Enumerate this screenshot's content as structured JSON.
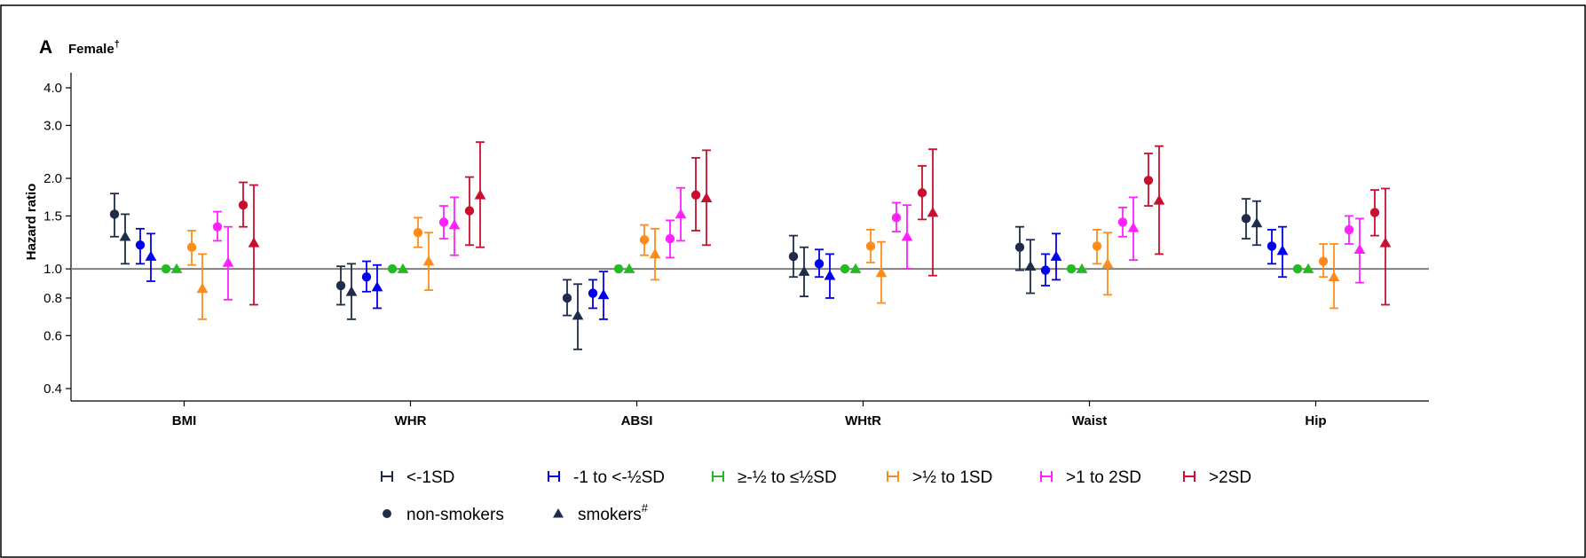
{
  "panel": {
    "letter": "A",
    "title": "Female",
    "title_mark": "†"
  },
  "chart_data": {
    "type": "scatter",
    "subtype": "forest-plot-with-error-bars",
    "title": "Female†",
    "ylabel": "Hazard ratio",
    "xlabel": "",
    "y_scale": "log",
    "ylim": [
      0.37,
      4.0
    ],
    "yticks": [
      0.4,
      0.6,
      0.8,
      1.0,
      1.5,
      2.0,
      3.0,
      4.0
    ],
    "ytick_labels": [
      "0.4",
      "0.6",
      "0.8",
      "1.0",
      "1.5",
      "2.0",
      "3.0",
      "4.0"
    ],
    "reference_line": 1.0,
    "grid": false,
    "legend_position": "bottom",
    "categories": [
      "BMI",
      "WHR",
      "ABSI",
      "WHtR",
      "Waist",
      "Hip"
    ],
    "sd_groups": [
      {
        "name": "<-1SD",
        "color": "#1f2d4a"
      },
      {
        "name": "-1 to <-½SD",
        "color": "#0000ee"
      },
      {
        "name": "≥-½ to ≤½SD",
        "color": "#22bb22"
      },
      {
        "name": ">½ to 1SD",
        "color": "#ff8c1a"
      },
      {
        "name": ">1 to 2SD",
        "color": "#ff22ff"
      },
      {
        "name": ">2SD",
        "color": "#c8102e"
      }
    ],
    "markers": [
      {
        "name": "non-smokers",
        "shape": "circle"
      },
      {
        "name": "smokers",
        "shape": "triangle",
        "mark": "#"
      }
    ],
    "series": [
      {
        "category": "BMI",
        "group": "<-1SD",
        "smoking": "non-smokers",
        "hr": 1.52,
        "lo": 1.28,
        "hi": 1.78
      },
      {
        "category": "BMI",
        "group": "<-1SD",
        "smoking": "smokers",
        "hr": 1.28,
        "lo": 1.04,
        "hi": 1.52
      },
      {
        "category": "BMI",
        "group": "-1 to <-½SD",
        "smoking": "non-smokers",
        "hr": 1.2,
        "lo": 1.04,
        "hi": 1.36
      },
      {
        "category": "BMI",
        "group": "-1 to <-½SD",
        "smoking": "smokers",
        "hr": 1.1,
        "lo": 0.91,
        "hi": 1.31
      },
      {
        "category": "BMI",
        "group": "≥-½ to ≤½SD",
        "smoking": "non-smokers",
        "hr": 1.0,
        "lo": 1.0,
        "hi": 1.0
      },
      {
        "category": "BMI",
        "group": "≥-½ to ≤½SD",
        "smoking": "smokers",
        "hr": 1.0,
        "lo": 1.0,
        "hi": 1.0
      },
      {
        "category": "BMI",
        "group": ">½ to 1SD",
        "smoking": "non-smokers",
        "hr": 1.18,
        "lo": 1.03,
        "hi": 1.34
      },
      {
        "category": "BMI",
        "group": ">½ to 1SD",
        "smoking": "smokers",
        "hr": 0.86,
        "lo": 0.68,
        "hi": 1.12
      },
      {
        "category": "BMI",
        "group": ">1 to 2SD",
        "smoking": "non-smokers",
        "hr": 1.38,
        "lo": 1.24,
        "hi": 1.55
      },
      {
        "category": "BMI",
        "group": ">1 to 2SD",
        "smoking": "smokers",
        "hr": 1.05,
        "lo": 0.79,
        "hi": 1.38
      },
      {
        "category": "BMI",
        "group": ">2SD",
        "smoking": "non-smokers",
        "hr": 1.63,
        "lo": 1.38,
        "hi": 1.94
      },
      {
        "category": "BMI",
        "group": ">2SD",
        "smoking": "smokers",
        "hr": 1.22,
        "lo": 0.76,
        "hi": 1.9
      },
      {
        "category": "WHR",
        "group": "<-1SD",
        "smoking": "non-smokers",
        "hr": 0.88,
        "lo": 0.76,
        "hi": 1.02
      },
      {
        "category": "WHR",
        "group": "<-1SD",
        "smoking": "smokers",
        "hr": 0.84,
        "lo": 0.68,
        "hi": 1.04
      },
      {
        "category": "WHR",
        "group": "-1 to <-½SD",
        "smoking": "non-smokers",
        "hr": 0.94,
        "lo": 0.84,
        "hi": 1.06
      },
      {
        "category": "WHR",
        "group": "-1 to <-½SD",
        "smoking": "smokers",
        "hr": 0.87,
        "lo": 0.74,
        "hi": 1.03
      },
      {
        "category": "WHR",
        "group": "≥-½ to ≤½SD",
        "smoking": "non-smokers",
        "hr": 1.0,
        "lo": 1.0,
        "hi": 1.0
      },
      {
        "category": "WHR",
        "group": "≥-½ to ≤½SD",
        "smoking": "smokers",
        "hr": 1.0,
        "lo": 1.0,
        "hi": 1.0
      },
      {
        "category": "WHR",
        "group": ">½ to 1SD",
        "smoking": "non-smokers",
        "hr": 1.32,
        "lo": 1.18,
        "hi": 1.48
      },
      {
        "category": "WHR",
        "group": ">½ to 1SD",
        "smoking": "smokers",
        "hr": 1.06,
        "lo": 0.85,
        "hi": 1.32
      },
      {
        "category": "WHR",
        "group": ">1 to 2SD",
        "smoking": "non-smokers",
        "hr": 1.43,
        "lo": 1.26,
        "hi": 1.62
      },
      {
        "category": "WHR",
        "group": ">1 to 2SD",
        "smoking": "smokers",
        "hr": 1.4,
        "lo": 1.11,
        "hi": 1.73
      },
      {
        "category": "WHR",
        "group": ">2SD",
        "smoking": "non-smokers",
        "hr": 1.56,
        "lo": 1.2,
        "hi": 2.02
      },
      {
        "category": "WHR",
        "group": ">2SD",
        "smoking": "smokers",
        "hr": 1.76,
        "lo": 1.18,
        "hi": 2.64
      },
      {
        "category": "ABSI",
        "group": "<-1SD",
        "smoking": "non-smokers",
        "hr": 0.8,
        "lo": 0.7,
        "hi": 0.92
      },
      {
        "category": "ABSI",
        "group": "<-1SD",
        "smoking": "smokers",
        "hr": 0.7,
        "lo": 0.54,
        "hi": 0.89
      },
      {
        "category": "ABSI",
        "group": "-1 to <-½SD",
        "smoking": "non-smokers",
        "hr": 0.83,
        "lo": 0.74,
        "hi": 0.92
      },
      {
        "category": "ABSI",
        "group": "-1 to <-½SD",
        "smoking": "smokers",
        "hr": 0.82,
        "lo": 0.68,
        "hi": 0.98
      },
      {
        "category": "ABSI",
        "group": "≥-½ to ≤½SD",
        "smoking": "non-smokers",
        "hr": 1.0,
        "lo": 1.0,
        "hi": 1.0
      },
      {
        "category": "ABSI",
        "group": "≥-½ to ≤½SD",
        "smoking": "smokers",
        "hr": 1.0,
        "lo": 1.0,
        "hi": 1.0
      },
      {
        "category": "ABSI",
        "group": ">½ to 1SD",
        "smoking": "non-smokers",
        "hr": 1.25,
        "lo": 1.11,
        "hi": 1.4
      },
      {
        "category": "ABSI",
        "group": ">½ to 1SD",
        "smoking": "smokers",
        "hr": 1.12,
        "lo": 0.92,
        "hi": 1.36
      },
      {
        "category": "ABSI",
        "group": ">1 to 2SD",
        "smoking": "non-smokers",
        "hr": 1.26,
        "lo": 1.09,
        "hi": 1.45
      },
      {
        "category": "ABSI",
        "group": ">1 to 2SD",
        "smoking": "smokers",
        "hr": 1.52,
        "lo": 1.24,
        "hi": 1.86
      },
      {
        "category": "ABSI",
        "group": ">2SD",
        "smoking": "non-smokers",
        "hr": 1.76,
        "lo": 1.34,
        "hi": 2.34
      },
      {
        "category": "ABSI",
        "group": ">2SD",
        "smoking": "smokers",
        "hr": 1.72,
        "lo": 1.2,
        "hi": 2.48
      },
      {
        "category": "WHtR",
        "group": "<-1SD",
        "smoking": "non-smokers",
        "hr": 1.1,
        "lo": 0.94,
        "hi": 1.29
      },
      {
        "category": "WHtR",
        "group": "<-1SD",
        "smoking": "smokers",
        "hr": 0.98,
        "lo": 0.81,
        "hi": 1.18
      },
      {
        "category": "WHtR",
        "group": "-1 to <-½SD",
        "smoking": "non-smokers",
        "hr": 1.04,
        "lo": 0.94,
        "hi": 1.16
      },
      {
        "category": "WHtR",
        "group": "-1 to <-½SD",
        "smoking": "smokers",
        "hr": 0.95,
        "lo": 0.8,
        "hi": 1.12
      },
      {
        "category": "WHtR",
        "group": "≥-½ to ≤½SD",
        "smoking": "non-smokers",
        "hr": 1.0,
        "lo": 1.0,
        "hi": 1.0
      },
      {
        "category": "WHtR",
        "group": "≥-½ to ≤½SD",
        "smoking": "smokers",
        "hr": 1.0,
        "lo": 1.0,
        "hi": 1.0
      },
      {
        "category": "WHtR",
        "group": ">½ to 1SD",
        "smoking": "non-smokers",
        "hr": 1.19,
        "lo": 1.05,
        "hi": 1.35
      },
      {
        "category": "WHtR",
        "group": ">½ to 1SD",
        "smoking": "smokers",
        "hr": 0.97,
        "lo": 0.77,
        "hi": 1.23
      },
      {
        "category": "WHtR",
        "group": ">1 to 2SD",
        "smoking": "non-smokers",
        "hr": 1.48,
        "lo": 1.33,
        "hi": 1.66
      },
      {
        "category": "WHtR",
        "group": ">1 to 2SD",
        "smoking": "smokers",
        "hr": 1.28,
        "lo": 1.0,
        "hi": 1.63
      },
      {
        "category": "WHtR",
        "group": ">2SD",
        "smoking": "non-smokers",
        "hr": 1.79,
        "lo": 1.46,
        "hi": 2.2
      },
      {
        "category": "WHtR",
        "group": ">2SD",
        "smoking": "smokers",
        "hr": 1.54,
        "lo": 0.95,
        "hi": 2.5
      },
      {
        "category": "Waist",
        "group": "<-1SD",
        "smoking": "non-smokers",
        "hr": 1.18,
        "lo": 0.99,
        "hi": 1.38
      },
      {
        "category": "Waist",
        "group": "<-1SD",
        "smoking": "smokers",
        "hr": 1.02,
        "lo": 0.83,
        "hi": 1.25
      },
      {
        "category": "Waist",
        "group": "-1 to <-½SD",
        "smoking": "non-smokers",
        "hr": 0.99,
        "lo": 0.88,
        "hi": 1.12
      },
      {
        "category": "Waist",
        "group": "-1 to <-½SD",
        "smoking": "smokers",
        "hr": 1.1,
        "lo": 0.92,
        "hi": 1.31
      },
      {
        "category": "Waist",
        "group": "≥-½ to ≤½SD",
        "smoking": "non-smokers",
        "hr": 1.0,
        "lo": 1.0,
        "hi": 1.0
      },
      {
        "category": "Waist",
        "group": "≥-½ to ≤½SD",
        "smoking": "smokers",
        "hr": 1.0,
        "lo": 1.0,
        "hi": 1.0
      },
      {
        "category": "Waist",
        "group": ">½ to 1SD",
        "smoking": "non-smokers",
        "hr": 1.19,
        "lo": 1.04,
        "hi": 1.35
      },
      {
        "category": "Waist",
        "group": ">½ to 1SD",
        "smoking": "smokers",
        "hr": 1.04,
        "lo": 0.82,
        "hi": 1.32
      },
      {
        "category": "Waist",
        "group": ">1 to 2SD",
        "smoking": "non-smokers",
        "hr": 1.43,
        "lo": 1.28,
        "hi": 1.6
      },
      {
        "category": "Waist",
        "group": ">1 to 2SD",
        "smoking": "smokers",
        "hr": 1.37,
        "lo": 1.07,
        "hi": 1.73
      },
      {
        "category": "Waist",
        "group": ">2SD",
        "smoking": "non-smokers",
        "hr": 1.97,
        "lo": 1.62,
        "hi": 2.42
      },
      {
        "category": "Waist",
        "group": ">2SD",
        "smoking": "smokers",
        "hr": 1.69,
        "lo": 1.12,
        "hi": 2.56
      },
      {
        "category": "Hip",
        "group": "<-1SD",
        "smoking": "non-smokers",
        "hr": 1.47,
        "lo": 1.26,
        "hi": 1.71
      },
      {
        "category": "Hip",
        "group": "<-1SD",
        "smoking": "smokers",
        "hr": 1.42,
        "lo": 1.2,
        "hi": 1.68
      },
      {
        "category": "Hip",
        "group": "-1 to <-½SD",
        "smoking": "non-smokers",
        "hr": 1.19,
        "lo": 1.04,
        "hi": 1.35
      },
      {
        "category": "Hip",
        "group": "-1 to <-½SD",
        "smoking": "smokers",
        "hr": 1.15,
        "lo": 0.94,
        "hi": 1.38
      },
      {
        "category": "Hip",
        "group": "≥-½ to ≤½SD",
        "smoking": "non-smokers",
        "hr": 1.0,
        "lo": 1.0,
        "hi": 1.0
      },
      {
        "category": "Hip",
        "group": "≥-½ to ≤½SD",
        "smoking": "smokers",
        "hr": 1.0,
        "lo": 1.0,
        "hi": 1.0
      },
      {
        "category": "Hip",
        "group": ">½ to 1SD",
        "smoking": "non-smokers",
        "hr": 1.06,
        "lo": 0.94,
        "hi": 1.21
      },
      {
        "category": "Hip",
        "group": ">½ to 1SD",
        "smoking": "smokers",
        "hr": 0.94,
        "lo": 0.74,
        "hi": 1.21
      },
      {
        "category": "Hip",
        "group": ">1 to 2SD",
        "smoking": "non-smokers",
        "hr": 1.35,
        "lo": 1.21,
        "hi": 1.5
      },
      {
        "category": "Hip",
        "group": ">1 to 2SD",
        "smoking": "smokers",
        "hr": 1.16,
        "lo": 0.9,
        "hi": 1.47
      },
      {
        "category": "Hip",
        "group": ">2SD",
        "smoking": "non-smokers",
        "hr": 1.54,
        "lo": 1.29,
        "hi": 1.83
      },
      {
        "category": "Hip",
        "group": ">2SD",
        "smoking": "smokers",
        "hr": 1.22,
        "lo": 0.76,
        "hi": 1.85
      }
    ]
  }
}
